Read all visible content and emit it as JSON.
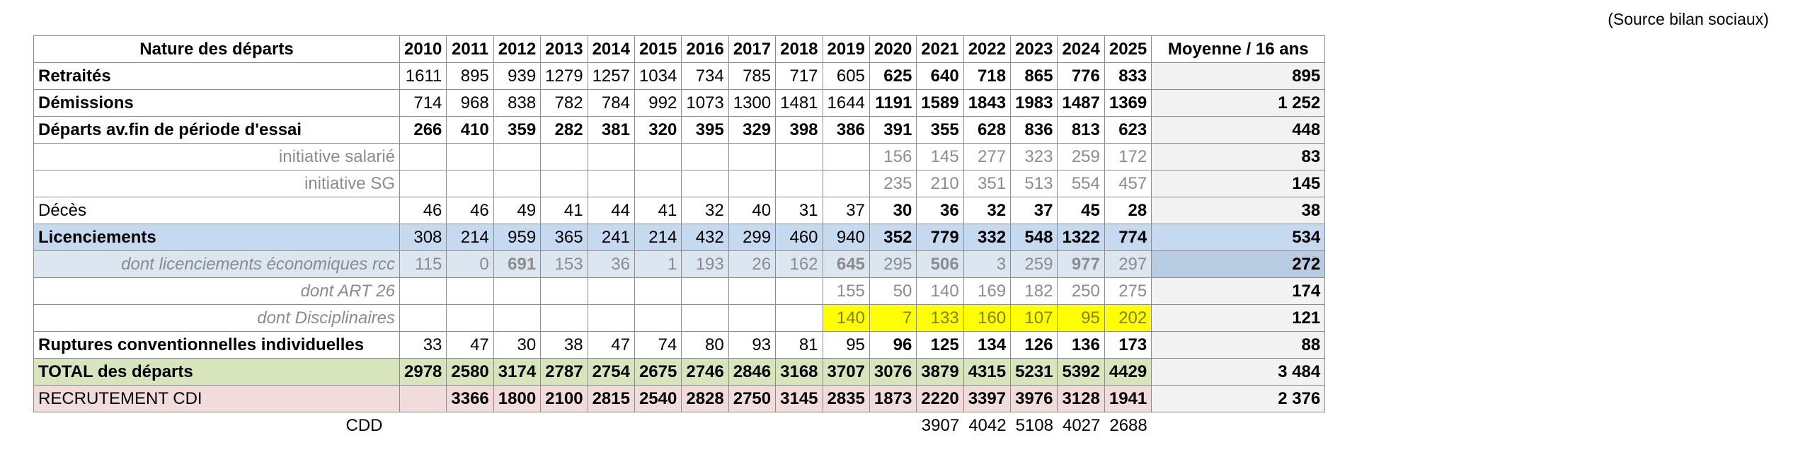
{
  "source_note": "(Source bilan sociaux)",
  "header": {
    "label": "Nature des départs",
    "years": [
      "2010",
      "2011",
      "2012",
      "2013",
      "2014",
      "2015",
      "2016",
      "2017",
      "2018",
      "2019",
      "2020",
      "2021",
      "2022",
      "2023",
      "2024",
      "2025"
    ],
    "avg": "Moyenne / 16 ans"
  },
  "rows": {
    "retraites": {
      "label": "Retraités",
      "values": [
        "1611",
        "895",
        "939",
        "1279",
        "1257",
        "1034",
        "734",
        "785",
        "717",
        "605",
        "625",
        "640",
        "718",
        "865",
        "776",
        "833"
      ],
      "avg": "895"
    },
    "demissions": {
      "label": "Démissions",
      "values": [
        "714",
        "968",
        "838",
        "782",
        "784",
        "992",
        "1073",
        "1300",
        "1481",
        "1644",
        "1191",
        "1589",
        "1843",
        "1983",
        "1487",
        "1369"
      ],
      "avg": "1 252"
    },
    "departs_essai": {
      "label": "Départs av.fin de période d'essai",
      "values": [
        "266",
        "410",
        "359",
        "282",
        "381",
        "320",
        "395",
        "329",
        "398",
        "386",
        "391",
        "355",
        "628",
        "836",
        "813",
        "623"
      ],
      "avg": "448"
    },
    "initiative_salarie": {
      "label": "initiative salarié",
      "values": [
        "",
        "",
        "",
        "",
        "",
        "",
        "",
        "",
        "",
        "",
        "156",
        "145",
        "277",
        "323",
        "259",
        "172"
      ],
      "avg": "83"
    },
    "initiative_sg": {
      "label": "initiative SG",
      "values": [
        "",
        "",
        "",
        "",
        "",
        "",
        "",
        "",
        "",
        "",
        "235",
        "210",
        "351",
        "513",
        "554",
        "457"
      ],
      "avg": "145"
    },
    "deces": {
      "label": "Décès",
      "values": [
        "46",
        "46",
        "49",
        "41",
        "44",
        "41",
        "32",
        "40",
        "31",
        "37",
        "30",
        "36",
        "32",
        "37",
        "45",
        "28"
      ],
      "avg": "38"
    },
    "licenciements": {
      "label": "Licenciements",
      "values": [
        "308",
        "214",
        "959",
        "365",
        "241",
        "214",
        "432",
        "299",
        "460",
        "940",
        "352",
        "779",
        "332",
        "548",
        "1322",
        "774"
      ],
      "avg": "534"
    },
    "lic_eco": {
      "label": "dont licenciements économiques rcc",
      "values": [
        "115",
        "0",
        "691",
        "153",
        "36",
        "1",
        "193",
        "26",
        "162",
        "645",
        "295",
        "506",
        "3",
        "259",
        "977",
        "297"
      ],
      "avg": "272"
    },
    "art26": {
      "label": "dont ART 26",
      "values": [
        "",
        "",
        "",
        "",
        "",
        "",
        "",
        "",
        "",
        "155",
        "50",
        "140",
        "169",
        "182",
        "250",
        "275"
      ],
      "avg": "174"
    },
    "disciplinaires": {
      "label": "dont Disciplinaires",
      "values": [
        "",
        "",
        "",
        "",
        "",
        "",
        "",
        "",
        "",
        "140",
        "7",
        "133",
        "160",
        "107",
        "95",
        "202"
      ],
      "avg": "121"
    },
    "ruptures": {
      "label": "Ruptures conventionnelles individuelles",
      "values": [
        "33",
        "47",
        "30",
        "38",
        "47",
        "74",
        "80",
        "93",
        "81",
        "95",
        "96",
        "125",
        "134",
        "126",
        "136",
        "173"
      ],
      "avg": "88"
    },
    "total": {
      "label": "TOTAL des départs",
      "values": [
        "2978",
        "2580",
        "3174",
        "2787",
        "2754",
        "2675",
        "2746",
        "2846",
        "3168",
        "3707",
        "3076",
        "3879",
        "4315",
        "5231",
        "5392",
        "4429"
      ],
      "avg": "3 484"
    },
    "recrutement": {
      "label": "RECRUTEMENT CDI",
      "values": [
        "",
        "3366",
        "1800",
        "2100",
        "2815",
        "2540",
        "2828",
        "2750",
        "3145",
        "2835",
        "1873",
        "2220",
        "3397",
        "3976",
        "3128",
        "1941"
      ],
      "avg": "2 376"
    },
    "cdd": {
      "label": "CDD",
      "values": [
        "",
        "",
        "",
        "",
        "",
        "",
        "",
        "",
        "",
        "",
        "",
        "3907",
        "4042",
        "5108",
        "4027",
        "2688"
      ]
    }
  },
  "colors": {
    "blue": "#c5d9f1",
    "light_blue": "#dce6f1",
    "green": "#d8e4bc",
    "pink": "#f2dcdb",
    "yellow": "#ffff00",
    "grey_text": "#8c8c8c"
  }
}
